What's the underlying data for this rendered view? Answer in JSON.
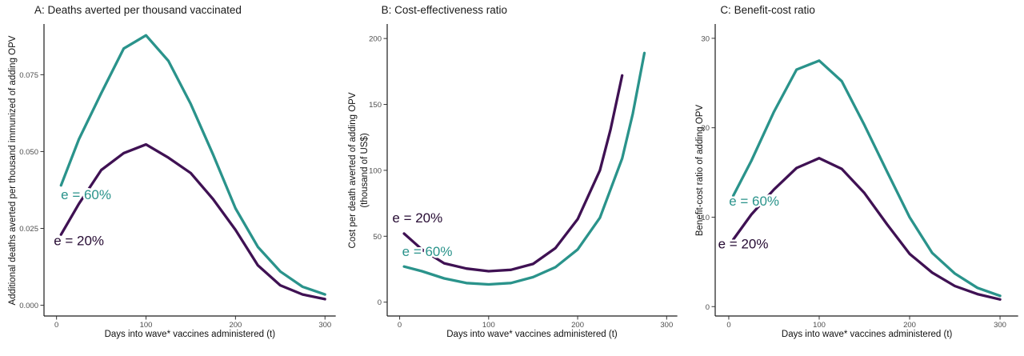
{
  "colors": {
    "teal_e60": "#2a938b",
    "purple_e20": "#3f1153",
    "label_e20_text": "#260b33",
    "axis_line": "#1a1a1a",
    "tick_text": "#4d4d4d"
  },
  "chart_data": [
    {
      "id": "A",
      "type": "line",
      "title": "A: Deaths averted per thousand vaccinated",
      "xlabel": "Days into wave* vaccines administered (t)",
      "ylabel_lines": [
        "Additional deaths averted per thousand immunized of adding OPV"
      ],
      "xlim": [
        -14,
        312
      ],
      "ylim": [
        -0.0035,
        0.0915
      ],
      "xticks": [
        0,
        100,
        200,
        300
      ],
      "xtick_labels": [
        "0",
        "100",
        "200",
        "300"
      ],
      "yticks": [
        0,
        0.025,
        0.05,
        0.075
      ],
      "ytick_labels": [
        "0.000",
        "0.025",
        "0.050",
        "0.075"
      ],
      "grid": false,
      "legend_position": "inline-annotations",
      "series": [
        {
          "name": "e = 60%",
          "color": "#2a938b",
          "points": [
            [
              5,
              0.039
            ],
            [
              25,
              0.054
            ],
            [
              50,
              0.069
            ],
            [
              75,
              0.0835
            ],
            [
              100,
              0.0878
            ],
            [
              125,
              0.0795
            ],
            [
              150,
              0.0655
            ],
            [
              175,
              0.049
            ],
            [
              200,
              0.0315
            ],
            [
              225,
              0.019
            ],
            [
              250,
              0.011
            ],
            [
              275,
              0.006
            ],
            [
              300,
              0.0035
            ]
          ]
        },
        {
          "name": "e = 20%",
          "color": "#3f1153",
          "points": [
            [
              5,
              0.023
            ],
            [
              25,
              0.033
            ],
            [
              50,
              0.044
            ],
            [
              75,
              0.0495
            ],
            [
              100,
              0.0523
            ],
            [
              125,
              0.048
            ],
            [
              150,
              0.043
            ],
            [
              175,
              0.0345
            ],
            [
              200,
              0.0245
            ],
            [
              225,
              0.013
            ],
            [
              250,
              0.0065
            ],
            [
              275,
              0.0035
            ],
            [
              300,
              0.002
            ]
          ]
        }
      ],
      "annotations": [
        {
          "text": "e = 60%",
          "x": 33,
          "y": 0.0345,
          "color": "#2a938b"
        },
        {
          "text": "e = 20%",
          "x": 25,
          "y": 0.0195,
          "color": "#260b33"
        }
      ],
      "layout": {
        "margin_left": 55,
        "title_x": 43,
        "ylabel_x": [
          16
        ]
      }
    },
    {
      "id": "B",
      "type": "line",
      "title": "B: Cost-effectiveness ratio",
      "xlabel": "Days into wave* vaccines administered (t)",
      "ylabel_lines": [
        "Cost per death averted of adding OPV",
        "(thousand of US$)"
      ],
      "xlim": [
        -14,
        312
      ],
      "ylim": [
        -10.5,
        211
      ],
      "xticks": [
        0,
        100,
        200,
        300
      ],
      "xtick_labels": [
        "0",
        "100",
        "200",
        "300"
      ],
      "yticks": [
        0,
        50,
        100,
        150,
        200
      ],
      "ytick_labels": [
        "0",
        "50",
        "100",
        "150",
        "200"
      ],
      "grid": false,
      "legend_position": "inline-annotations",
      "series": [
        {
          "name": "e = 60%",
          "color": "#2a938b",
          "points": [
            [
              5,
              27
            ],
            [
              25,
              23.5
            ],
            [
              50,
              18
            ],
            [
              75,
              14.5
            ],
            [
              100,
              13.5
            ],
            [
              125,
              14.5
            ],
            [
              150,
              19
            ],
            [
              175,
              26.5
            ],
            [
              200,
              40
            ],
            [
              225,
              64
            ],
            [
              250,
              109
            ],
            [
              262,
              143
            ],
            [
              275,
              189
            ]
          ]
        },
        {
          "name": "e = 20%",
          "color": "#3f1153",
          "points": [
            [
              5,
              52
            ],
            [
              25,
              40
            ],
            [
              50,
              29.5
            ],
            [
              75,
              25.5
            ],
            [
              100,
              23.5
            ],
            [
              125,
              24.5
            ],
            [
              150,
              29
            ],
            [
              175,
              41
            ],
            [
              200,
              63
            ],
            [
              225,
              100
            ],
            [
              237,
              131
            ],
            [
              250,
              172
            ]
          ]
        }
      ],
      "annotations": [
        {
          "text": "e = 20%",
          "x": 20,
          "y": 60.5,
          "color": "#260b33"
        },
        {
          "text": "e = 60%",
          "x": 31,
          "y": 35,
          "color": "#2a938b"
        }
      ],
      "layout": {
        "margin_left": 57,
        "title_x": 50,
        "ylabel_x": [
          14,
          29
        ]
      }
    },
    {
      "id": "C",
      "type": "line",
      "title": "C: Benefit-cost ratio",
      "xlabel": "Days into wave* vaccines administered (t)",
      "ylabel_lines": [
        "Benefit-cost ratio of adding OPV"
      ],
      "xlim": [
        -15,
        320
      ],
      "ylim": [
        -1.05,
        31.6
      ],
      "xticks": [
        0,
        100,
        200,
        300
      ],
      "xtick_labels": [
        "0",
        "100",
        "200",
        "300"
      ],
      "yticks": [
        0,
        10,
        20,
        30
      ],
      "ytick_labels": [
        "0",
        "10",
        "20",
        "30"
      ],
      "grid": false,
      "legend_position": "inline-annotations",
      "series": [
        {
          "name": "e = 60%",
          "color": "#2a938b",
          "points": [
            [
              5,
              12.4
            ],
            [
              25,
              16.3
            ],
            [
              50,
              21.8
            ],
            [
              75,
              26.5
            ],
            [
              100,
              27.5
            ],
            [
              125,
              25.2
            ],
            [
              150,
              20.3
            ],
            [
              175,
              15.1
            ],
            [
              200,
              10.0
            ],
            [
              225,
              6.0
            ],
            [
              250,
              3.7
            ],
            [
              275,
              2.1
            ],
            [
              300,
              1.2
            ]
          ]
        },
        {
          "name": "e = 20%",
          "color": "#3f1153",
          "points": [
            [
              5,
              7.5
            ],
            [
              25,
              10.3
            ],
            [
              50,
              13.1
            ],
            [
              75,
              15.5
            ],
            [
              100,
              16.6
            ],
            [
              125,
              15.4
            ],
            [
              150,
              12.7
            ],
            [
              175,
              9.2
            ],
            [
              200,
              5.9
            ],
            [
              225,
              3.8
            ],
            [
              250,
              2.3
            ],
            [
              275,
              1.4
            ],
            [
              300,
              0.8
            ]
          ]
        }
      ],
      "annotations": [
        {
          "text": "e = 60%",
          "x": 28,
          "y": 11.3,
          "color": "#2a938b"
        },
        {
          "text": "e = 20%",
          "x": 16,
          "y": 6.5,
          "color": "#260b33"
        }
      ],
      "layout": {
        "margin_left": 41,
        "title_x": 47,
        "ylabel_x": [
          22
        ]
      }
    }
  ]
}
